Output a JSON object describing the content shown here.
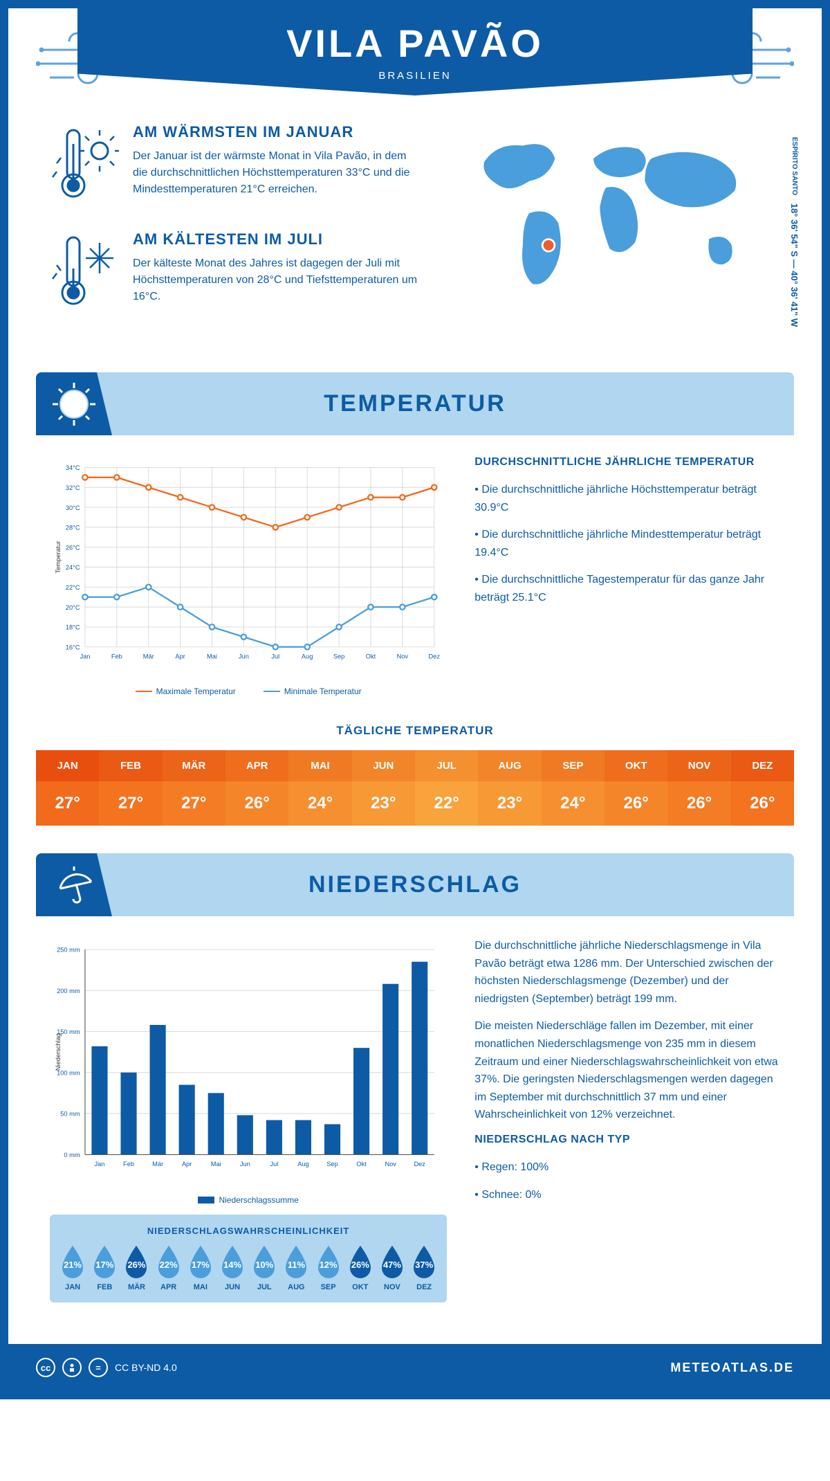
{
  "header": {
    "city": "VILA PAVÃO",
    "country": "BRASILIEN"
  },
  "coords": {
    "region": "ESPÍRITO SANTO",
    "lat": "18° 36' 54\" S",
    "lon": "40° 36' 41\" W"
  },
  "facts": {
    "warm": {
      "title": "AM WÄRMSTEN IM JANUAR",
      "text": "Der Januar ist der wärmste Monat in Vila Pavão, in dem die durchschnittlichen Höchsttemperaturen 33°C und die Mindesttemperaturen 21°C erreichen."
    },
    "cold": {
      "title": "AM KÄLTESTEN IM JULI",
      "text": "Der kälteste Monat des Jahres ist dagegen der Juli mit Höchsttemperaturen von 28°C und Tiefsttemperaturen um 16°C."
    }
  },
  "months": [
    "Jan",
    "Feb",
    "Mär",
    "Apr",
    "Mai",
    "Jun",
    "Jul",
    "Aug",
    "Sep",
    "Okt",
    "Nov",
    "Dez"
  ],
  "months_uc": [
    "JAN",
    "FEB",
    "MÄR",
    "APR",
    "MAI",
    "JUN",
    "JUL",
    "AUG",
    "SEP",
    "OKT",
    "NOV",
    "DEZ"
  ],
  "temp_section": {
    "title": "TEMPERATUR",
    "side_title": "DURCHSCHNITTLICHE JÄHRLICHE TEMPERATUR",
    "bullets": [
      "• Die durchschnittliche jährliche Höchsttemperatur beträgt 30.9°C",
      "• Die durchschnittliche jährliche Mindesttemperatur beträgt 19.4°C",
      "• Die durchschnittliche Tagestemperatur für das ganze Jahr beträgt 25.1°C"
    ],
    "chart": {
      "ylabel": "Temperatur",
      "ymin": 16,
      "ymax": 34,
      "ystep": 2,
      "max_series": {
        "label": "Maximale Temperatur",
        "color": "#f26a1b",
        "values": [
          33,
          33,
          32,
          31,
          30,
          29,
          28,
          29,
          30,
          31,
          31,
          32
        ]
      },
      "min_series": {
        "label": "Minimale Temperatur",
        "color": "#4a9edb",
        "values": [
          21,
          21,
          22,
          20,
          18,
          17,
          16,
          16,
          18,
          20,
          20,
          21
        ]
      },
      "grid_color": "#d7d7d7",
      "bg": "#ffffff"
    },
    "daily_title": "TÄGLICHE TEMPERATUR",
    "daily_values": [
      "27°",
      "27°",
      "27°",
      "26°",
      "24°",
      "23°",
      "22°",
      "23°",
      "24°",
      "26°",
      "26°",
      "26°"
    ],
    "daily_header_colors": [
      "#e84f0f",
      "#ea5a14",
      "#ec6418",
      "#ee6e1d",
      "#f07a23",
      "#f28529",
      "#f4902f",
      "#f28529",
      "#f07a23",
      "#ee6e1d",
      "#ec6418",
      "#ea5a14"
    ],
    "daily_value_colors": [
      "#f26a1b",
      "#f3731f",
      "#f47c24",
      "#f58529",
      "#f68f2f",
      "#f79935",
      "#f8a33b",
      "#f79935",
      "#f68f2f",
      "#f58529",
      "#f47c24",
      "#f3731f"
    ]
  },
  "precip_section": {
    "title": "NIEDERSCHLAG",
    "chart": {
      "ylabel": "Niederschlag",
      "ymin": 0,
      "ymax": 250,
      "ystep": 50,
      "color": "#0d5ba5",
      "values": [
        132,
        100,
        158,
        85,
        75,
        48,
        42,
        42,
        37,
        130,
        208,
        235
      ],
      "legend": "Niederschlagssumme"
    },
    "text1": "Die durchschnittliche jährliche Niederschlagsmenge in Vila Pavão beträgt etwa 1286 mm. Der Unterschied zwischen der höchsten Niederschlagsmenge (Dezember) und der niedrigsten (September) beträgt 199 mm.",
    "text2": "Die meisten Niederschläge fallen im Dezember, mit einer monatlichen Niederschlagsmenge von 235 mm in diesem Zeitraum und einer Niederschlagswahrscheinlichkeit von etwa 37%. Die geringsten Niederschlagsmengen werden dagegen im September mit durchschnittlich 37 mm und einer Wahrscheinlichkeit von 12% verzeichnet.",
    "type_title": "NIEDERSCHLAG NACH TYP",
    "type_bullets": [
      "• Regen: 100%",
      "• Schnee: 0%"
    ],
    "prob_title": "NIEDERSCHLAGSWAHRSCHEINLICHKEIT",
    "prob": [
      {
        "v": "21%",
        "dark": false
      },
      {
        "v": "17%",
        "dark": false
      },
      {
        "v": "26%",
        "dark": true
      },
      {
        "v": "22%",
        "dark": false
      },
      {
        "v": "17%",
        "dark": false
      },
      {
        "v": "14%",
        "dark": false
      },
      {
        "v": "10%",
        "dark": false
      },
      {
        "v": "11%",
        "dark": false
      },
      {
        "v": "12%",
        "dark": false
      },
      {
        "v": "26%",
        "dark": true
      },
      {
        "v": "47%",
        "dark": true
      },
      {
        "v": "37%",
        "dark": true
      }
    ],
    "drop_light": "#4a9edb",
    "drop_dark": "#0d5ba5"
  },
  "footer": {
    "license": "CC BY-ND 4.0",
    "site": "METEOATLAS.DE"
  },
  "colors": {
    "primary": "#0d5ba5",
    "light": "#b0d6f0",
    "accent": "#4a9edb"
  }
}
